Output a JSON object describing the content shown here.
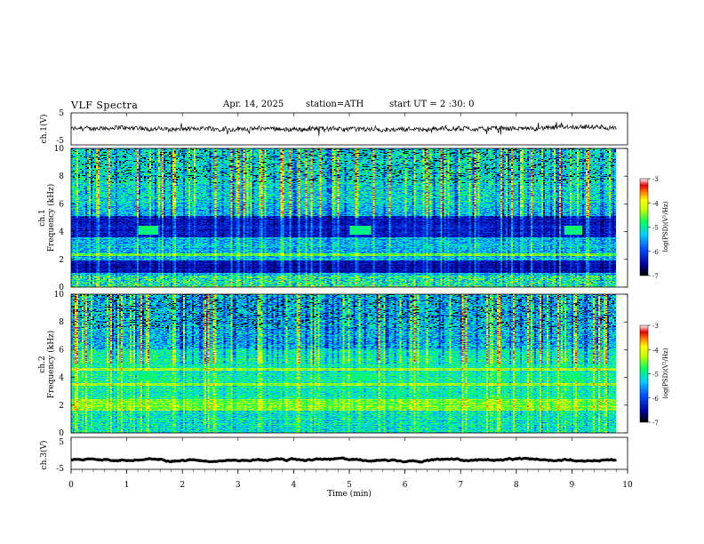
{
  "header": {
    "title": "VLF Spectra",
    "date": "Apr. 14, 2025",
    "station": "station=ATH",
    "start_ut": "start UT =  2 :30: 0"
  },
  "panels": {
    "ch1_wave_label": "ch.1(V)",
    "ch1_spec_label": "ch.1",
    "ch2_spec_label": "ch.2",
    "ch3_wave_label": "ch.3(V)",
    "freq_label": "Frequency (kHz)",
    "colorbar_label": "log(PSD)(V²/Hz)",
    "xlabel": "Time (min)"
  },
  "chart_data": [
    {
      "type": "line",
      "name": "ch1-waveform",
      "ylabel": "ch.1(V)",
      "ylim": [
        -5,
        5
      ],
      "yticks": [
        "5",
        "-5"
      ],
      "xlim": [
        0,
        10
      ],
      "baseline": 0,
      "color": "#000000"
    },
    {
      "type": "heatmap",
      "name": "ch1-spectrogram",
      "ylabel": "Frequency (kHz)",
      "ylim": [
        0,
        10
      ],
      "yticks": [
        "0",
        "2",
        "4",
        "6",
        "8",
        "10"
      ],
      "xlim": [
        0,
        10
      ],
      "colorbar": {
        "range": [
          -7,
          -3
        ],
        "ticks": [
          "-3",
          "-4",
          "-5",
          "-6",
          "-7"
        ]
      },
      "features": [
        {
          "kind": "strong-band",
          "fmin": 1.0,
          "fmax": 1.9,
          "level": -6.0
        },
        {
          "kind": "strong-band",
          "fmin": 3.7,
          "fmax": 5.0,
          "level": -6.0
        },
        {
          "kind": "emission-band",
          "fmin": 2.2,
          "fmax": 2.5,
          "level": -4.5
        },
        {
          "kind": "patch",
          "t": [
            1.2,
            1.55
          ],
          "f": [
            3.8,
            4.4
          ]
        },
        {
          "kind": "patch",
          "t": [
            5.0,
            5.4
          ],
          "f": [
            3.8,
            4.4
          ]
        },
        {
          "kind": "patch",
          "t": [
            8.9,
            9.2
          ],
          "f": [
            3.8,
            4.4
          ]
        }
      ]
    },
    {
      "type": "heatmap",
      "name": "ch2-spectrogram",
      "ylabel": "Frequency (kHz)",
      "ylim": [
        0,
        10
      ],
      "yticks": [
        "0",
        "2",
        "4",
        "6",
        "8",
        "10"
      ],
      "xlim": [
        0,
        10
      ],
      "colorbar": {
        "range": [
          -7,
          -3
        ],
        "ticks": [
          "-3",
          "-4",
          "-5",
          "-6",
          "-7"
        ]
      },
      "features": [
        {
          "kind": "emission-band",
          "fmin": 1.7,
          "fmax": 2.3,
          "level": -4.3
        },
        {
          "kind": "emission-band",
          "fmin": 3.4,
          "fmax": 3.6,
          "level": -4.5
        },
        {
          "kind": "emission-band",
          "fmin": 4.5,
          "fmax": 4.7,
          "level": -4.5
        },
        {
          "kind": "patch",
          "t": [
            1.2,
            1.55
          ],
          "f": [
            3.8,
            4.4
          ]
        },
        {
          "kind": "patch",
          "t": [
            5.0,
            5.4
          ],
          "f": [
            3.8,
            4.4
          ]
        },
        {
          "kind": "patch",
          "t": [
            8.9,
            9.2
          ],
          "f": [
            3.8,
            4.4
          ]
        }
      ]
    },
    {
      "type": "line",
      "name": "ch3-waveform",
      "ylabel": "ch.3(V)",
      "ylim": [
        -5,
        5
      ],
      "yticks": [
        "5",
        "-5"
      ],
      "xlim": [
        0,
        10
      ],
      "baseline": -2,
      "color": "#000000"
    }
  ],
  "x_axis": {
    "ticks": [
      "0",
      "1",
      "2",
      "3",
      "4",
      "5",
      "6",
      "7",
      "8",
      "9",
      "10"
    ],
    "data_end": 9.8
  }
}
